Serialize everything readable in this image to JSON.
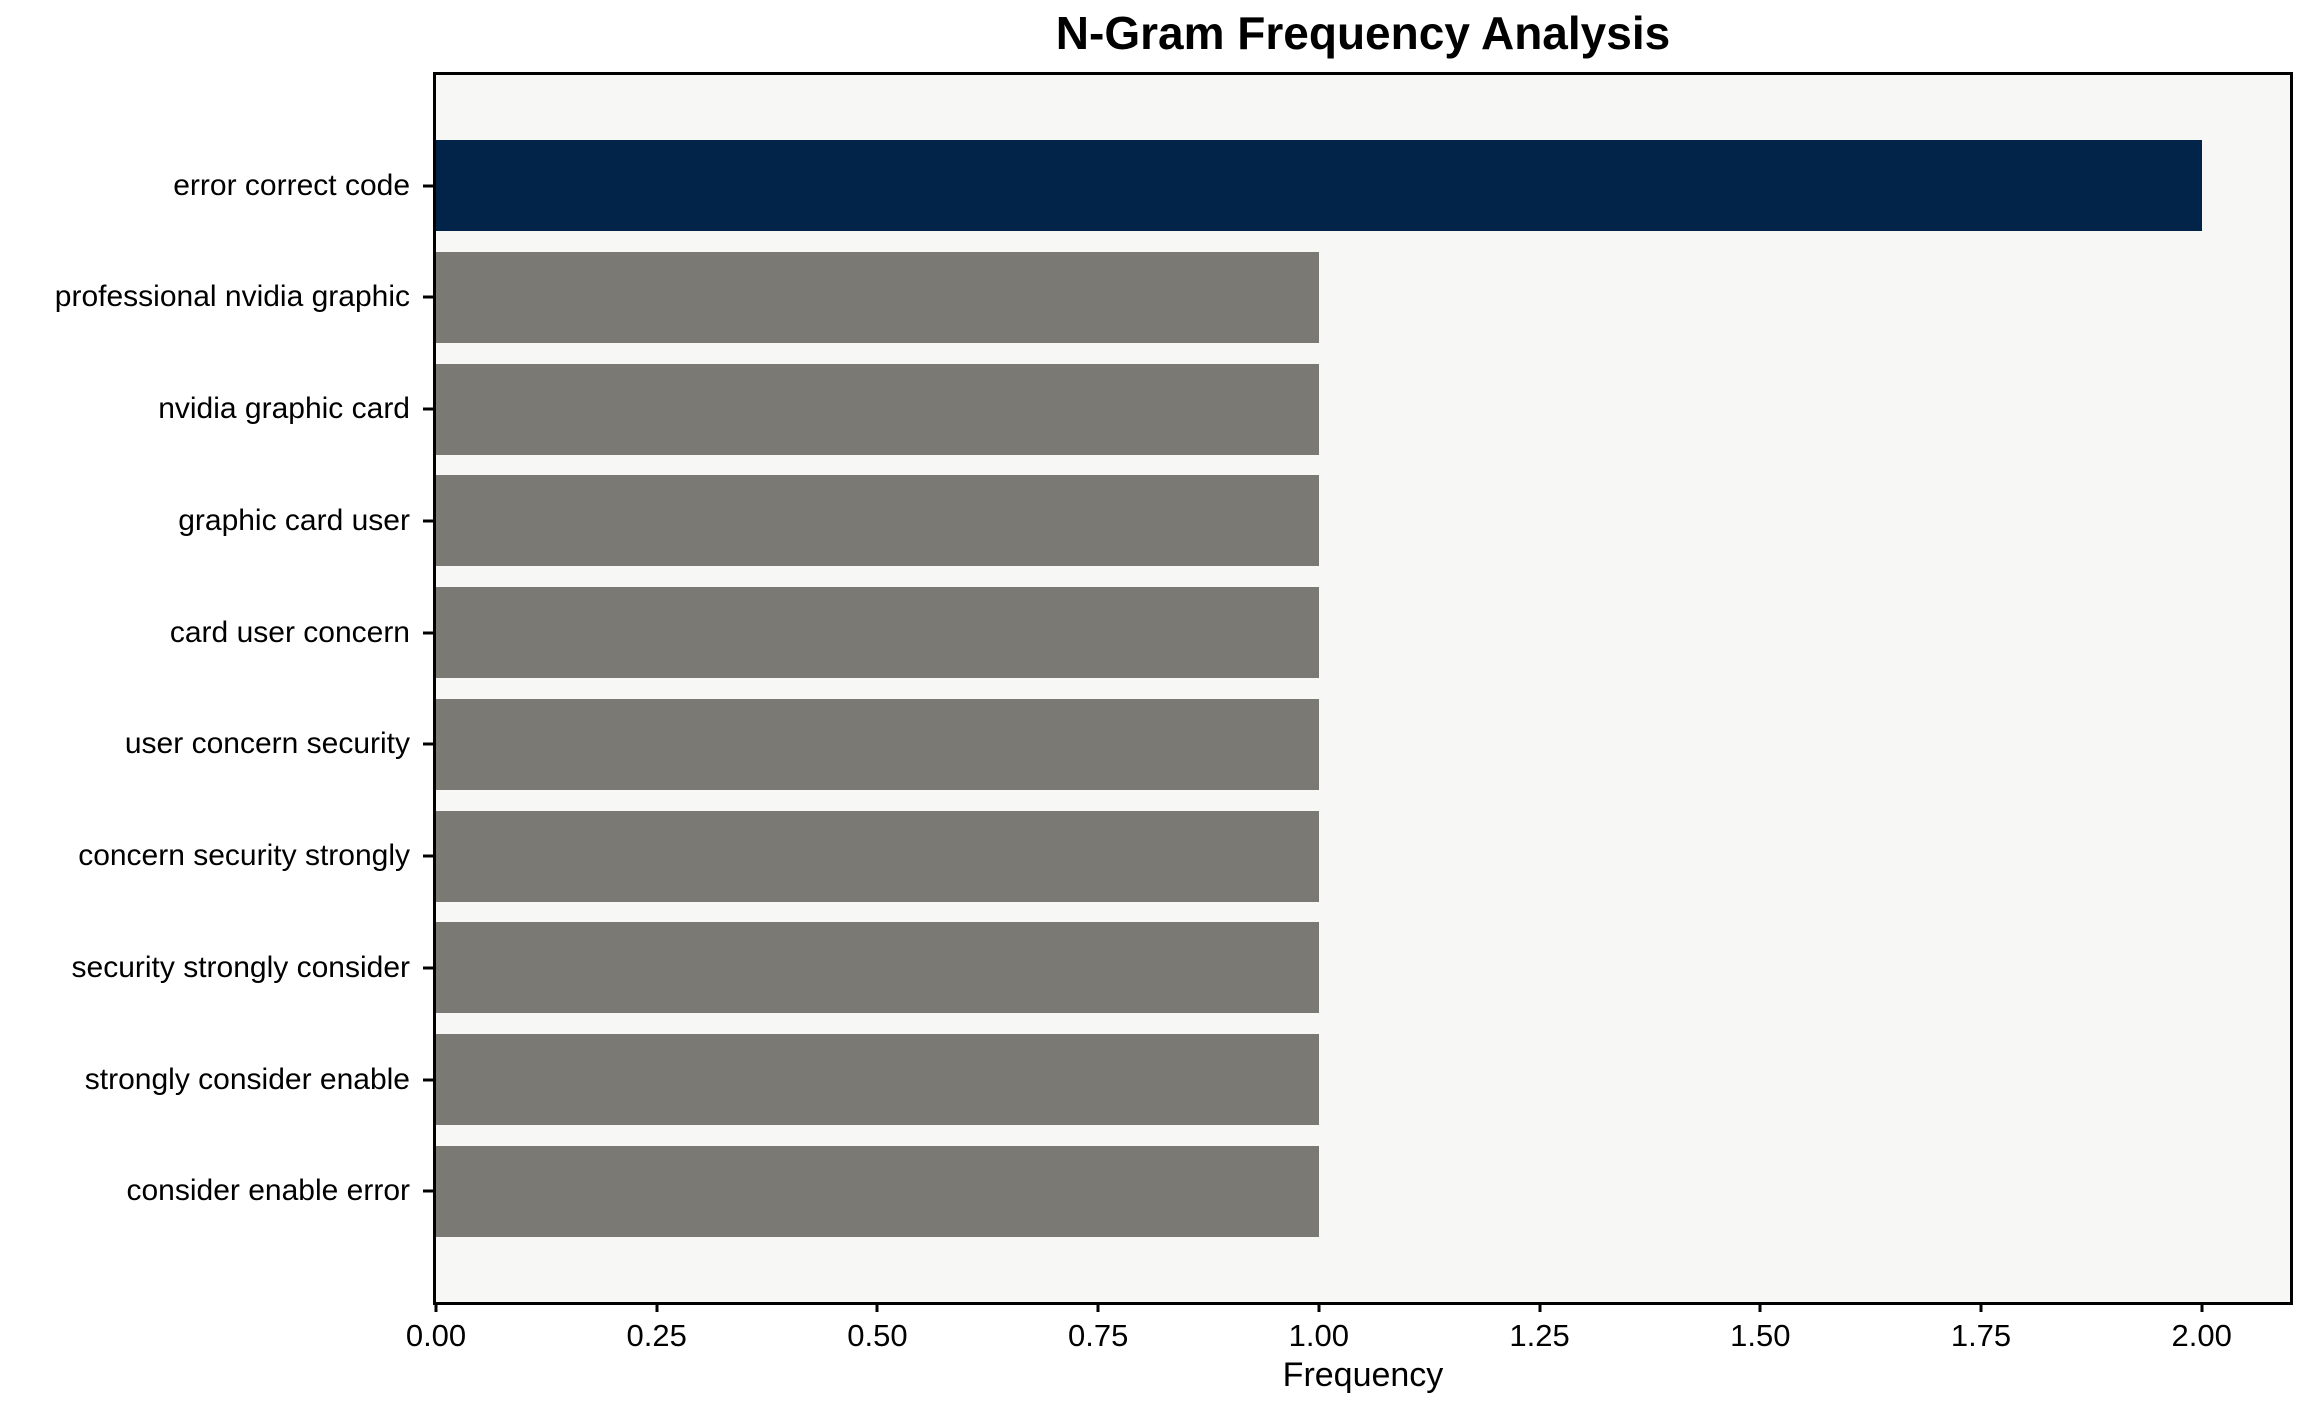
{
  "chart_data": {
    "type": "bar",
    "orientation": "horizontal",
    "title": "N-Gram Frequency Analysis",
    "xlabel": "Frequency",
    "ylabel": "",
    "categories": [
      "error correct code",
      "professional nvidia graphic",
      "nvidia graphic card",
      "graphic card user",
      "card user concern",
      "user concern security",
      "concern security strongly",
      "security strongly consider",
      "strongly consider enable",
      "consider enable error"
    ],
    "values": [
      2,
      1,
      1,
      1,
      1,
      1,
      1,
      1,
      1,
      1
    ],
    "bar_colors": [
      "#032449",
      "#7a7974",
      "#7a7974",
      "#7a7974",
      "#7a7974",
      "#7a7974",
      "#7a7974",
      "#7a7974",
      "#7a7974",
      "#7a7974"
    ],
    "xlim": [
      0,
      2.1
    ],
    "xticks": [
      {
        "value": 0,
        "label": "0.00"
      },
      {
        "value": 0.25,
        "label": "0.25"
      },
      {
        "value": 0.5,
        "label": "0.50"
      },
      {
        "value": 0.75,
        "label": "0.75"
      },
      {
        "value": 1,
        "label": "1.00"
      },
      {
        "value": 1.25,
        "label": "1.25"
      },
      {
        "value": 1.5,
        "label": "1.50"
      },
      {
        "value": 1.75,
        "label": "1.75"
      },
      {
        "value": 2,
        "label": "2.00"
      }
    ],
    "grid": false,
    "legend": null,
    "colors": {
      "highlight": "#032449",
      "default": "#7a7974",
      "plot_background": "#f7f7f6",
      "figure_background": "#ffffff",
      "spine": "#000000",
      "text": "#000000"
    }
  }
}
